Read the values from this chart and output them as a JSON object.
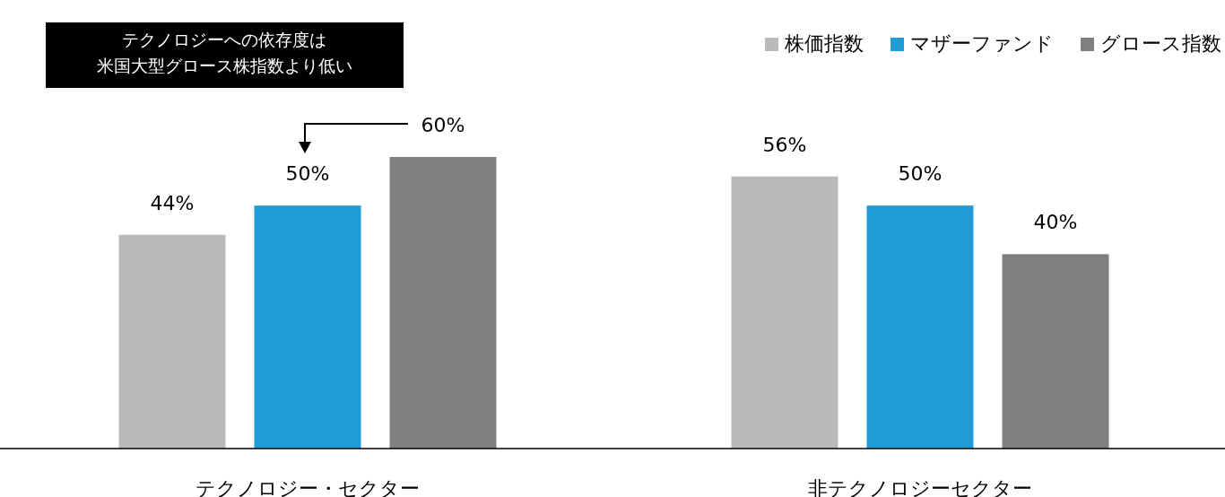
{
  "chart_data": {
    "type": "bar",
    "categories": [
      "テクノロジー・セクター",
      "非テクノロジーセクター"
    ],
    "series": [
      {
        "name": "株価指数",
        "color": "#bababa",
        "values": [
          44,
          56
        ],
        "value_labels": [
          "44%",
          "56%"
        ]
      },
      {
        "name": "マザーファンド",
        "color": "#1f9bd7",
        "values": [
          50,
          50
        ],
        "value_labels": [
          "50%",
          "50%"
        ]
      },
      {
        "name": "グロース指数",
        "color": "#808080",
        "values": [
          60,
          40
        ],
        "value_labels": [
          "60%",
          "40%"
        ]
      }
    ],
    "legend": "top right",
    "annotations": [
      "テクノロジーへの依存度は",
      "米国大型グロース株指数より低い"
    ]
  }
}
